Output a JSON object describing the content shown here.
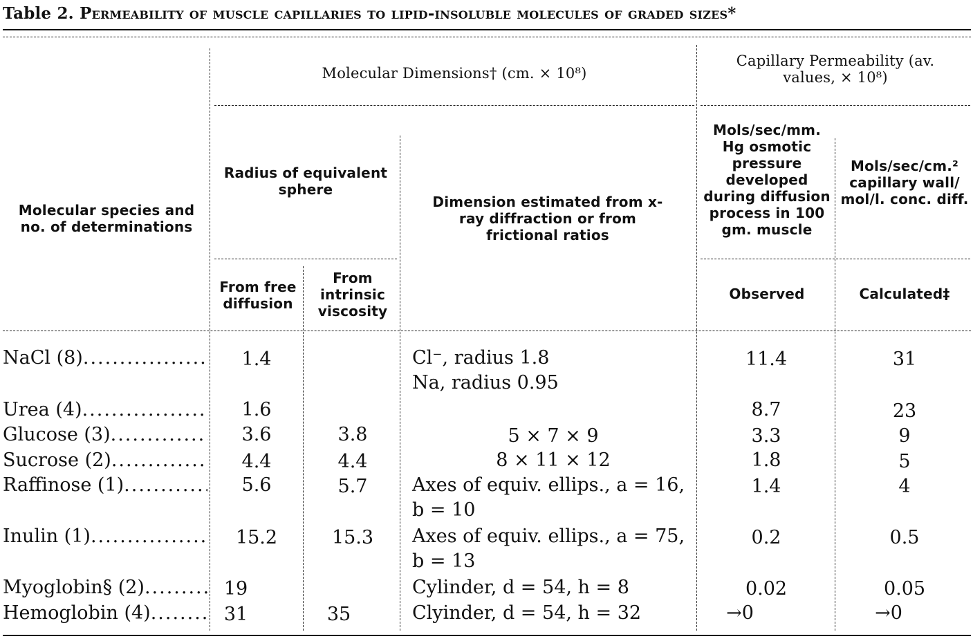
{
  "title": {
    "prefix": "Table 2.",
    "text": "Permeability of muscle capillaries to lipid-insoluble molecules of graded sizes*"
  },
  "headers": {
    "molecular_dimensions": "Molecular Dimensions† (cm. × 10⁸)",
    "capillary_permeability": "Capillary Permeability (av. values, × 10⁸)",
    "species": "Molecular species and no. of determinations",
    "radius_sphere": "Radius of equivalent sphere",
    "dimension_estimated": "Dimension estimated from x-ray diffraction or from frictional ratios",
    "mols_osmotic": "Mols/sec/mm. Hg osmotic pressure developed during diffusion process in 100 gm. muscle",
    "mols_capillary": "Mols/sec/cm.² capillary wall/ mol/l. conc. diff.",
    "from_free_diffusion": "From free diffusion",
    "from_intrinsic_viscosity": "From intrinsic viscosity",
    "observed": "Observed",
    "calculated": "Calculated‡"
  },
  "rows": [
    {
      "species": "NaCl (8)",
      "free": "1.4",
      "viscosity": "",
      "dimension": "Cl⁻, radius 1.8",
      "dimension2": "Na, radius 0.95",
      "observed": "11.4",
      "calculated": "31"
    },
    {
      "species": "Urea (4)",
      "free": "1.6",
      "viscosity": "",
      "dimension": "",
      "observed": "8.7",
      "calculated": "23"
    },
    {
      "species": "Glucose (3)",
      "free": "3.6",
      "viscosity": "3.8",
      "dimension": "5 × 7 × 9",
      "observed": "3.3",
      "calculated": "9"
    },
    {
      "species": "Sucrose (2)",
      "free": "4.4",
      "viscosity": "4.4",
      "dimension": "8 × 11 × 12",
      "observed": "1.8",
      "calculated": "5"
    },
    {
      "species": "Raffinose (1)",
      "free": "5.6",
      "viscosity": "5.7",
      "dimension": "Axes of equiv. ellips., a = 16, b = 10",
      "observed": "1.4",
      "calculated": "4"
    },
    {
      "species": "Inulin (1)",
      "free": "15.2",
      "viscosity": "15.3",
      "dimension": "Axes of equiv. ellips., a = 75, b = 13",
      "observed": "0.2",
      "calculated": "0.5"
    },
    {
      "species": "Myoglobin§ (2)",
      "free": "19",
      "viscosity": "",
      "dimension": "Cylinder, d = 54, h = 8",
      "observed": "0.02",
      "calculated": "0.05"
    },
    {
      "species": "Hemoglobin (4)",
      "free": "31",
      "viscosity": "35",
      "dimension": "Clyinder, d = 54, h = 32",
      "observed": "→0",
      "calculated": "→0"
    }
  ]
}
